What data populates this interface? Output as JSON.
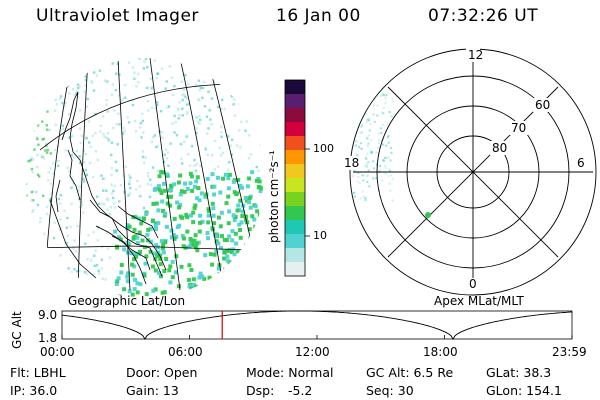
{
  "header": {
    "instrument": "Ultraviolet Imager",
    "date": "16 Jan 00",
    "time": "07:32:26 UT"
  },
  "colorbar": {
    "unit_label": "photon cm⁻²s⁻¹",
    "ticks": [
      {
        "value": 100,
        "label": "100"
      },
      {
        "value": 10,
        "label": "10"
      }
    ],
    "scale": "log",
    "colors": [
      "#1a0a3c",
      "#5a1e6e",
      "#8c0a3c",
      "#d2003c",
      "#f0501e",
      "#ff9600",
      "#f0c81e",
      "#c8e61e",
      "#78d21e",
      "#32c850",
      "#1ec8b4",
      "#50d2d2",
      "#b4e6e6",
      "#e6f0f0"
    ]
  },
  "geo_map": {
    "label": "Geographic Lat/Lon",
    "aurora_colors": [
      "#32c850",
      "#50d2d2",
      "#b4e6e6"
    ]
  },
  "polar_plot": {
    "label": "Apex MLat/MLT",
    "mlt_labels": {
      "top": "12",
      "left": "18",
      "right": "6",
      "bottom": "0"
    },
    "mlat_labels": [
      "60",
      "70",
      "80"
    ]
  },
  "gc_alt_plot": {
    "ylabel": "GC Alt",
    "yticks": [
      "9.0",
      "1.8"
    ],
    "ymin": 1.8,
    "ymax": 9.0,
    "xticks": [
      "00:00",
      "06:00",
      "12:00",
      "18:00",
      "23:59"
    ],
    "current_time_hours": 7.54,
    "curve_color": "#000000",
    "marker_color": "#d20000"
  },
  "info": {
    "flt": "Flt: LBHL",
    "ip": "IP: 36.0",
    "door": "Door: Open",
    "gain": "Gain: 13",
    "mode": "Mode: Normal",
    "dsp_label": "Dsp:",
    "dsp_value": "-5.2",
    "gc_alt": "GC Alt: 6.5 Re",
    "seq": "Seq: 30",
    "glat": "GLat: 38.3",
    "glon": "GLon: 154.1"
  }
}
